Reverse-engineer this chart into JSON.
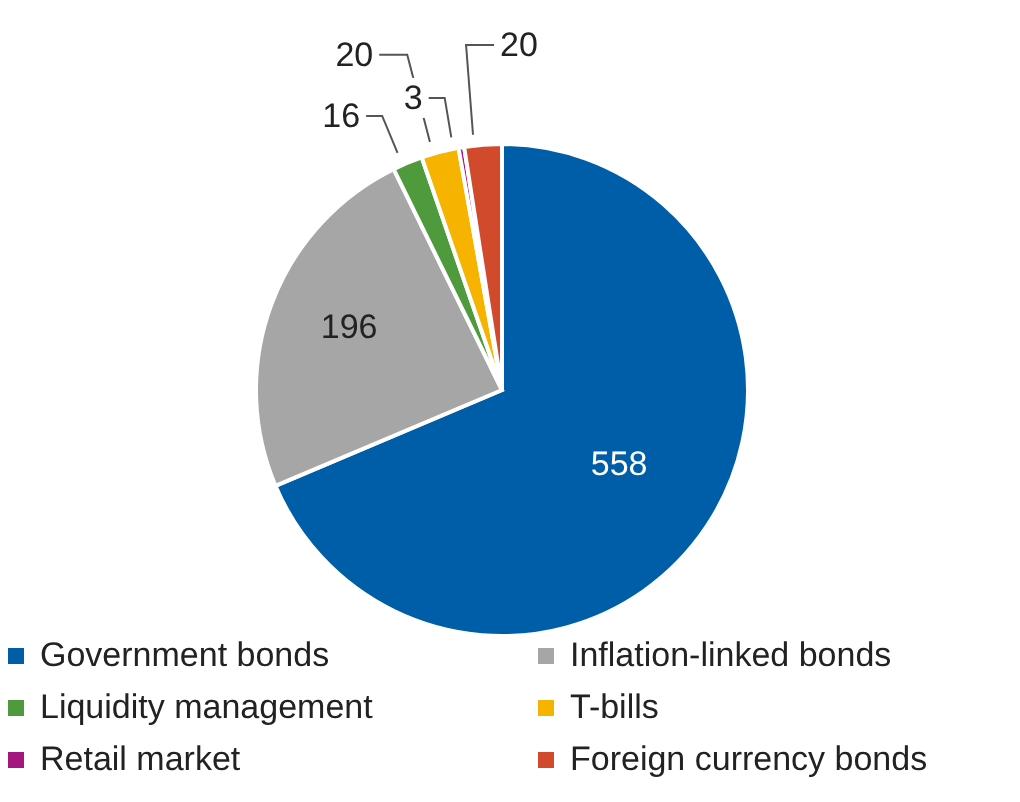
{
  "chart_data": {
    "type": "pie",
    "categories": [
      "Government bonds",
      "Inflation-linked bonds",
      "Liquidity management",
      "T-bills",
      "Retail market",
      "Foreign currency bonds"
    ],
    "values": [
      558,
      196,
      16,
      20,
      3,
      20
    ],
    "colors": [
      "#005ea8",
      "#a6a6a6",
      "#4e9a3c",
      "#f6b400",
      "#a3187f",
      "#d24a2c"
    ],
    "data_labels": true,
    "legend": "bottom"
  }
}
